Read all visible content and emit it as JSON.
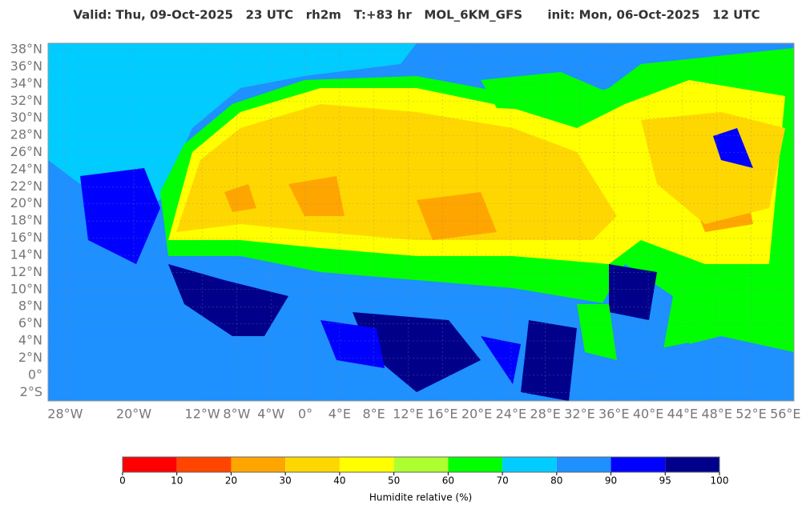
{
  "title": "Valid: Thu, 09-Oct-2025   23 UTC   rh2m   T:+83 hr   MOL_6KM_GFS      init: Mon, 06-Oct-2025   12 UTC",
  "map": {
    "xlim": [
      -30,
      57
    ],
    "ylim": [
      -3,
      38.75
    ],
    "lat_ticks": [
      {
        "value": 38,
        "label": "38°N"
      },
      {
        "value": 36,
        "label": "36°N"
      },
      {
        "value": 34,
        "label": "34°N"
      },
      {
        "value": 32,
        "label": "32°N"
      },
      {
        "value": 30,
        "label": "30°N"
      },
      {
        "value": 28,
        "label": "28°N"
      },
      {
        "value": 26,
        "label": "26°N"
      },
      {
        "value": 24,
        "label": "24°N"
      },
      {
        "value": 22,
        "label": "22°N"
      },
      {
        "value": 20,
        "label": "20°N"
      },
      {
        "value": 18,
        "label": "18°N"
      },
      {
        "value": 16,
        "label": "16°N"
      },
      {
        "value": 14,
        "label": "14°N"
      },
      {
        "value": 12,
        "label": "12°N"
      },
      {
        "value": 10,
        "label": "10°N"
      },
      {
        "value": 8,
        "label": "8°N"
      },
      {
        "value": 6,
        "label": "6°N"
      },
      {
        "value": 4,
        "label": "4°N"
      },
      {
        "value": 2,
        "label": "2°N"
      },
      {
        "value": 0,
        "label": "0°"
      },
      {
        "value": -2,
        "label": "2°S"
      }
    ],
    "lon_ticks": [
      {
        "value": -28,
        "label": "28°W"
      },
      {
        "value": -20,
        "label": "20°W"
      },
      {
        "value": -12,
        "label": "12°W"
      },
      {
        "value": -8,
        "label": "8°W"
      },
      {
        "value": -4,
        "label": "4°W"
      },
      {
        "value": 0,
        "label": "0°"
      },
      {
        "value": 4,
        "label": "4°E"
      },
      {
        "value": 8,
        "label": "8°E"
      },
      {
        "value": 12,
        "label": "12°E"
      },
      {
        "value": 16,
        "label": "16°E"
      },
      {
        "value": 20,
        "label": "20°E"
      },
      {
        "value": 24,
        "label": "24°E"
      },
      {
        "value": 28,
        "label": "28°E"
      },
      {
        "value": 32,
        "label": "32°E"
      },
      {
        "value": 36,
        "label": "36°E"
      },
      {
        "value": 40,
        "label": "40°E"
      },
      {
        "value": 44,
        "label": "44°E"
      },
      {
        "value": 48,
        "label": "48°E"
      },
      {
        "value": 52,
        "label": "52°E"
      },
      {
        "value": 56,
        "label": "56°E"
      }
    ]
  },
  "colorbar": {
    "ticks": [
      0,
      10,
      20,
      30,
      40,
      50,
      60,
      70,
      80,
      90,
      95,
      100
    ],
    "colors": [
      "#ff0000",
      "#ff4500",
      "#ffa500",
      "#ffd700",
      "#ffff00",
      "#adff2f",
      "#00ff00",
      "#00ccff",
      "#1e90ff",
      "#0000ff",
      "#00008b"
    ],
    "label": "Humidite relative (%)"
  }
}
